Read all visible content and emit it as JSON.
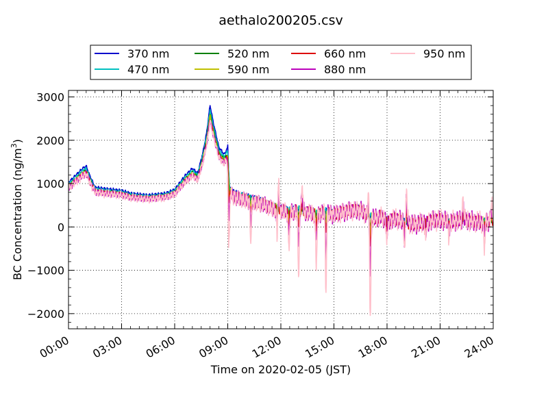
{
  "chart_data": {
    "type": "line",
    "title": "aethalo200205.csv",
    "xlabel": "Time on 2020-02-05 (JST)",
    "ylabel_main": "BC Concentration (ng/m",
    "ylabel_sup": "3",
    "ylabel_tail": ")",
    "xlim": [
      0,
      24
    ],
    "ylim": [
      -2350,
      3150
    ],
    "x_ticks": [
      0,
      3,
      6,
      9,
      12,
      15,
      18,
      21,
      24
    ],
    "x_tick_labels": [
      "00:00",
      "03:00",
      "06:00",
      "09:00",
      "12:00",
      "15:00",
      "18:00",
      "21:00",
      "24:00"
    ],
    "y_ticks": [
      -2000,
      -1000,
      0,
      1000,
      2000,
      3000
    ],
    "y_tick_labels": [
      "−2000",
      "−1000",
      "0",
      "1000",
      "2000",
      "3000"
    ],
    "grid": true,
    "legend_position": "top",
    "series": [
      {
        "name": "370 nm",
        "color": "#0000cc",
        "amp": 1.08,
        "shift": 0.0,
        "noise": 0.6,
        "spikes": 0.0
      },
      {
        "name": "470 nm",
        "color": "#00bfbf",
        "amp": 1.04,
        "shift": 0.1,
        "noise": 0.7,
        "spikes": 0.0
      },
      {
        "name": "520 nm",
        "color": "#008000",
        "amp": 1.0,
        "shift": 0.2,
        "noise": 0.8,
        "spikes": 0.1
      },
      {
        "name": "590 nm",
        "color": "#bfbf00",
        "amp": 0.98,
        "shift": 0.3,
        "noise": 0.9,
        "spikes": 0.15
      },
      {
        "name": "660 nm",
        "color": "#dd0000",
        "amp": 0.96,
        "shift": 0.4,
        "noise": 1.0,
        "spikes": 0.3
      },
      {
        "name": "880 nm",
        "color": "#bb00bb",
        "amp": 0.95,
        "shift": 0.5,
        "noise": 1.6,
        "spikes": 0.6
      },
      {
        "name": "950 nm",
        "color": "#ffc0cb",
        "amp": 0.94,
        "shift": 0.6,
        "noise": 1.8,
        "spikes": 1.0
      }
    ],
    "baseline": [
      [
        0.0,
        950
      ],
      [
        0.4,
        1100
      ],
      [
        0.8,
        1250
      ],
      [
        1.0,
        1300
      ],
      [
        1.2,
        1100
      ],
      [
        1.5,
        850
      ],
      [
        2.0,
        820
      ],
      [
        2.5,
        800
      ],
      [
        3.0,
        780
      ],
      [
        3.5,
        720
      ],
      [
        4.0,
        700
      ],
      [
        4.5,
        680
      ],
      [
        5.0,
        700
      ],
      [
        5.5,
        720
      ],
      [
        6.0,
        800
      ],
      [
        6.3,
        950
      ],
      [
        6.6,
        1100
      ],
      [
        7.0,
        1250
      ],
      [
        7.3,
        1150
      ],
      [
        7.6,
        1600
      ],
      [
        7.8,
        2000
      ],
      [
        8.0,
        2600
      ],
      [
        8.2,
        2200
      ],
      [
        8.5,
        1700
      ],
      [
        8.8,
        1550
      ],
      [
        9.0,
        1700
      ],
      [
        9.1,
        800
      ],
      [
        9.5,
        700
      ],
      [
        10.0,
        650
      ],
      [
        10.5,
        600
      ],
      [
        11.0,
        550
      ],
      [
        11.5,
        450
      ],
      [
        12.0,
        400
      ],
      [
        12.5,
        350
      ],
      [
        13.0,
        400
      ],
      [
        13.5,
        350
      ],
      [
        14.0,
        300
      ],
      [
        14.5,
        350
      ],
      [
        15.0,
        300
      ],
      [
        15.5,
        350
      ],
      [
        16.0,
        400
      ],
      [
        16.5,
        400
      ],
      [
        17.0,
        250
      ],
      [
        17.3,
        200
      ],
      [
        17.6,
        250
      ],
      [
        18.0,
        150
      ],
      [
        18.5,
        200
      ],
      [
        19.0,
        120
      ],
      [
        19.5,
        60
      ],
      [
        20.0,
        100
      ],
      [
        20.5,
        150
      ],
      [
        21.0,
        180
      ],
      [
        21.5,
        120
      ],
      [
        22.0,
        150
      ],
      [
        22.5,
        160
      ],
      [
        23.0,
        130
      ],
      [
        23.5,
        120
      ],
      [
        24.0,
        150
      ]
    ],
    "dips": [
      [
        9.05,
        -450
      ],
      [
        10.3,
        -250
      ],
      [
        11.8,
        -500
      ],
      [
        12.45,
        -550
      ],
      [
        13.0,
        -1050
      ],
      [
        14.0,
        -850
      ],
      [
        14.55,
        -1350
      ],
      [
        17.05,
        -2100
      ],
      [
        18.0,
        -400
      ],
      [
        19.0,
        -550
      ],
      [
        20.2,
        -300
      ],
      [
        21.5,
        -200
      ],
      [
        23.5,
        -450
      ]
    ],
    "peaks": [
      [
        11.85,
        1400
      ],
      [
        13.2,
        1050
      ],
      [
        16.95,
        950
      ],
      [
        19.1,
        1000
      ],
      [
        22.3,
        700
      ],
      [
        23.9,
        600
      ]
    ]
  }
}
